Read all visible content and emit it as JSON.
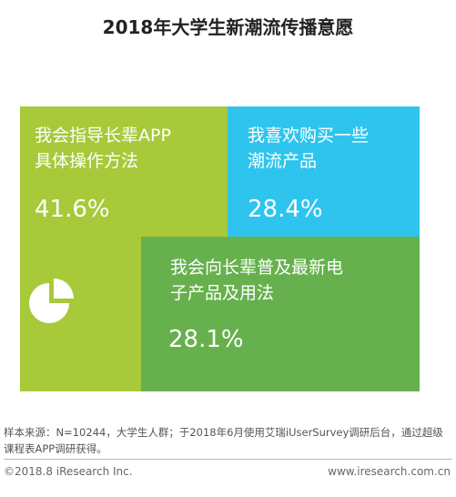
{
  "chart_data": {
    "type": "treemap",
    "title": "2018年大学生新潮流传播意愿",
    "categories": [
      "我会指导长辈APP\n具体操作方法",
      "我喜欢购买一些\n潮流产品",
      "我会向长辈普及最新电\n子产品及用法"
    ],
    "values": [
      41.6,
      28.4,
      28.1
    ],
    "value_labels": [
      "41.6%",
      "28.4%",
      "28.1%"
    ],
    "colors": [
      "#a8c93a",
      "#2fc4ee",
      "#66b14d"
    ],
    "unit": "%"
  },
  "footer": {
    "note": "样本来源：N=10244，大学生人群；于2018年6月使用艾瑞iUserSurvey调研后台，通过超级课程表APP调研获得。",
    "copyright": "©2018.8 iResearch Inc.",
    "website": "www.iresearch.com.cn"
  },
  "icons": {
    "pie": "pie-chart-icon"
  }
}
